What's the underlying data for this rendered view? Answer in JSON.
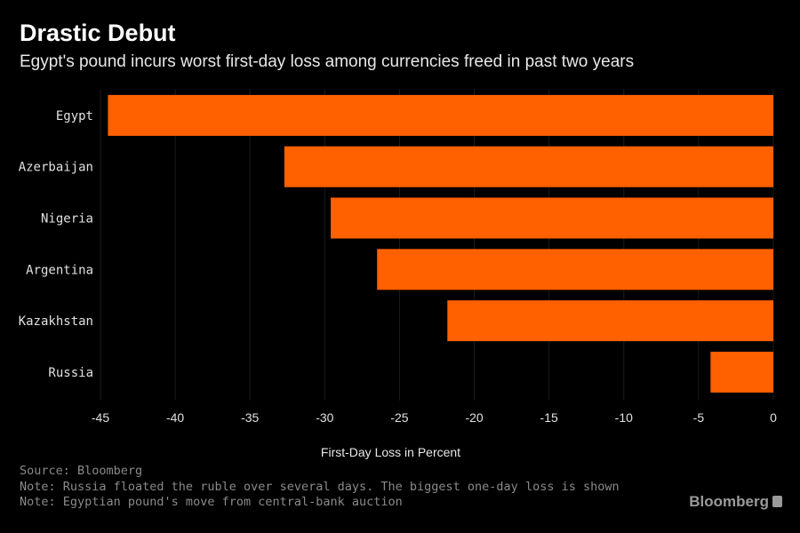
{
  "chart_data": {
    "type": "bar",
    "orientation": "horizontal",
    "title": "Drastic Debut",
    "subtitle": "Egypt's pound incurs worst first-day loss among currencies freed in past two years",
    "categories": [
      "Egypt",
      "Azerbaijan",
      "Nigeria",
      "Argentina",
      "Kazakhstan",
      "Russia"
    ],
    "values": [
      -44.5,
      -32.7,
      -29.6,
      -26.5,
      -21.8,
      -4.2
    ],
    "xlabel": "First-Day Loss in Percent",
    "ylabel": "",
    "xlim": [
      -45,
      0
    ],
    "xticks": [
      -45,
      -40,
      -35,
      -30,
      -25,
      -20,
      -15,
      -10,
      -5,
      0
    ],
    "grid": true,
    "bar_color": "#ff6000"
  },
  "footer": {
    "source": "Source: Bloomberg",
    "notes": [
      "Note: Russia floated the ruble over several days. The biggest one-day loss is shown",
      "Note: Egyptian pound's move from central-bank auction"
    ],
    "logo": "Bloomberg"
  }
}
